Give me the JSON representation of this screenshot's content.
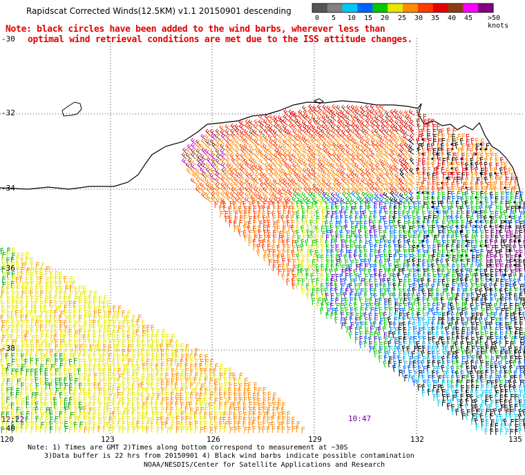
{
  "header": {
    "title": "Rapidscat Corrected Winds(12.5KM) v1.1 20150901 descending",
    "note_line1": "Note: black circles have been added to the wind barbs, wherever less than",
    "note_line2": "optimal wind retrieval conditions are met due to the ISS attitude changes."
  },
  "colorbar": {
    "labels": [
      "0",
      "5",
      "10",
      "15",
      "20",
      "25",
      "30",
      "35",
      "40",
      "45",
      ">50 knots"
    ],
    "colors": [
      "#555555",
      "#808080",
      "#00c8f0",
      "#0064ff",
      "#00c800",
      "#e6e600",
      "#ff8c00",
      "#ff3c00",
      "#e60000",
      "#8c3c14",
      "#ff00ff",
      "#800080"
    ]
  },
  "axes": {
    "lat_labels": [
      "-30",
      "-32",
      "-34",
      "-36",
      "-38",
      "-40"
    ],
    "lon_labels": [
      "120",
      "123",
      "126",
      "129",
      "132",
      "135"
    ]
  },
  "times": {
    "left": "12:22",
    "right": "10:47"
  },
  "footer": {
    "line1": "Note: 1) Times are GMT 2)Times along bottom correspond to measurement at ~30S",
    "line2": "3)Data buffer is 22 hrs from 20150901 4) Black wind barbs indicate possible contamination",
    "line3": "NOAA/NESDIS/Center for Satellite Applications and Research"
  }
}
